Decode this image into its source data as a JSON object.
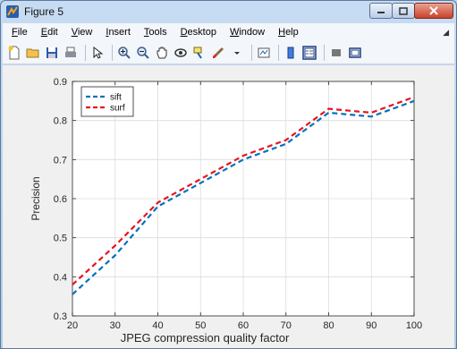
{
  "window": {
    "title": "Figure 5"
  },
  "menu": {
    "items": [
      {
        "u": "F",
        "rest": "ile"
      },
      {
        "u": "E",
        "rest": "dit"
      },
      {
        "u": "V",
        "rest": "iew"
      },
      {
        "u": "I",
        "rest": "nsert"
      },
      {
        "u": "T",
        "rest": "ools"
      },
      {
        "u": "D",
        "rest": "esktop"
      },
      {
        "u": "W",
        "rest": "indow"
      },
      {
        "u": "H",
        "rest": "elp"
      }
    ]
  },
  "toolbar": {
    "icons": [
      "new-figure-icon",
      "open-file-icon",
      "save-icon",
      "print-icon",
      "pointer-icon",
      "zoom-in-icon",
      "zoom-out-icon",
      "pan-icon",
      "rotate-3d-icon",
      "data-cursor-icon",
      "brush-icon",
      "colorbar-icon",
      "legend-icon",
      "link-plot-icon",
      "plot-browser-icon",
      "property-editor-icon"
    ]
  },
  "chart_data": {
    "type": "line",
    "x": [
      20,
      30,
      40,
      50,
      60,
      70,
      80,
      90,
      100
    ],
    "series": [
      {
        "name": "sift",
        "color": "#0072bd",
        "values": [
          0.355,
          0.455,
          0.58,
          0.64,
          0.7,
          0.74,
          0.82,
          0.81,
          0.85
        ]
      },
      {
        "name": "surf",
        "color": "#e8141e",
        "values": [
          0.38,
          0.48,
          0.59,
          0.65,
          0.71,
          0.75,
          0.83,
          0.82,
          0.86
        ]
      }
    ],
    "xlabel": "JPEG compression quality  factor",
    "ylabel": "Precision",
    "xlim": [
      20,
      100
    ],
    "ylim": [
      0.3,
      0.9
    ],
    "xticks": [
      20,
      30,
      40,
      50,
      60,
      70,
      80,
      90,
      100
    ],
    "yticks": [
      0.3,
      0.4,
      0.5,
      0.6,
      0.7,
      0.8,
      0.9
    ],
    "xtick_labels": [
      "20",
      "30",
      "40",
      "50",
      "60",
      "70",
      "80",
      "90",
      "100"
    ],
    "ytick_labels": [
      "0.3",
      "0.4",
      "0.5",
      "0.6",
      "0.7",
      "0.8",
      "0.9"
    ],
    "grid": true,
    "legend": "top-left",
    "line_style": "dashed"
  }
}
